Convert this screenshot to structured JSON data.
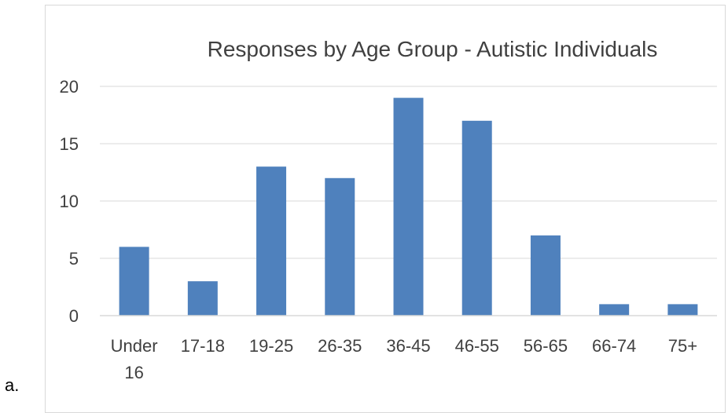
{
  "figure": {
    "side_label": "a."
  },
  "chart_data": {
    "type": "bar",
    "title": "Responses by Age Group - Autistic Individuals",
    "categories": [
      "Under 16",
      "17-18",
      "19-25",
      "26-35",
      "36-45",
      "46-55",
      "56-65",
      "66-74",
      "75+"
    ],
    "category_lines": [
      [
        "Under",
        "16"
      ],
      [
        "17-18"
      ],
      [
        "19-25"
      ],
      [
        "26-35"
      ],
      [
        "36-45"
      ],
      [
        "46-55"
      ],
      [
        "56-65"
      ],
      [
        "66-74"
      ],
      [
        "75+"
      ]
    ],
    "values": [
      6,
      3,
      13,
      12,
      19,
      17,
      7,
      1,
      1
    ],
    "ylim": [
      0,
      20
    ],
    "yticks": [
      0,
      5,
      10,
      15,
      20
    ],
    "grid": true,
    "bar_color": "#4f81bd",
    "grid_color": "#d9d9d9",
    "text_color": "#404040"
  }
}
